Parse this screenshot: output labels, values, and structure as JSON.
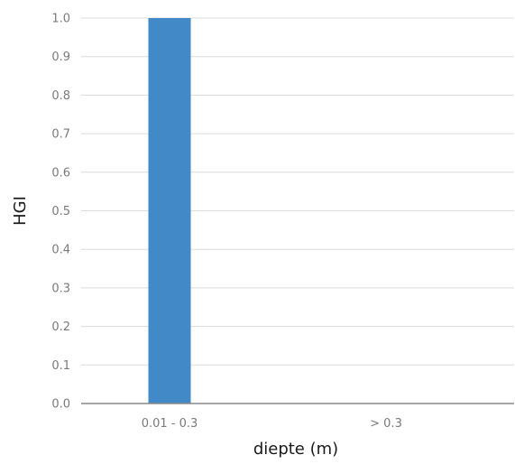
{
  "chart_data": {
    "type": "bar",
    "title": "",
    "xlabel": "diepte (m)",
    "ylabel": "HGI",
    "categories": [
      "0.01 - 0.3",
      "> 0.3"
    ],
    "values": [
      1.0,
      0.0
    ],
    "ylim": [
      0.0,
      1.0
    ],
    "yticks": [
      "0.0",
      "0.1",
      "0.2",
      "0.3",
      "0.4",
      "0.5",
      "0.6",
      "0.7",
      "0.8",
      "0.9",
      "1.0"
    ],
    "grid": true,
    "legend": "none",
    "colors": {
      "bar": "#4189c7",
      "grid": "#dcdcdc",
      "axis": "#888888"
    }
  }
}
